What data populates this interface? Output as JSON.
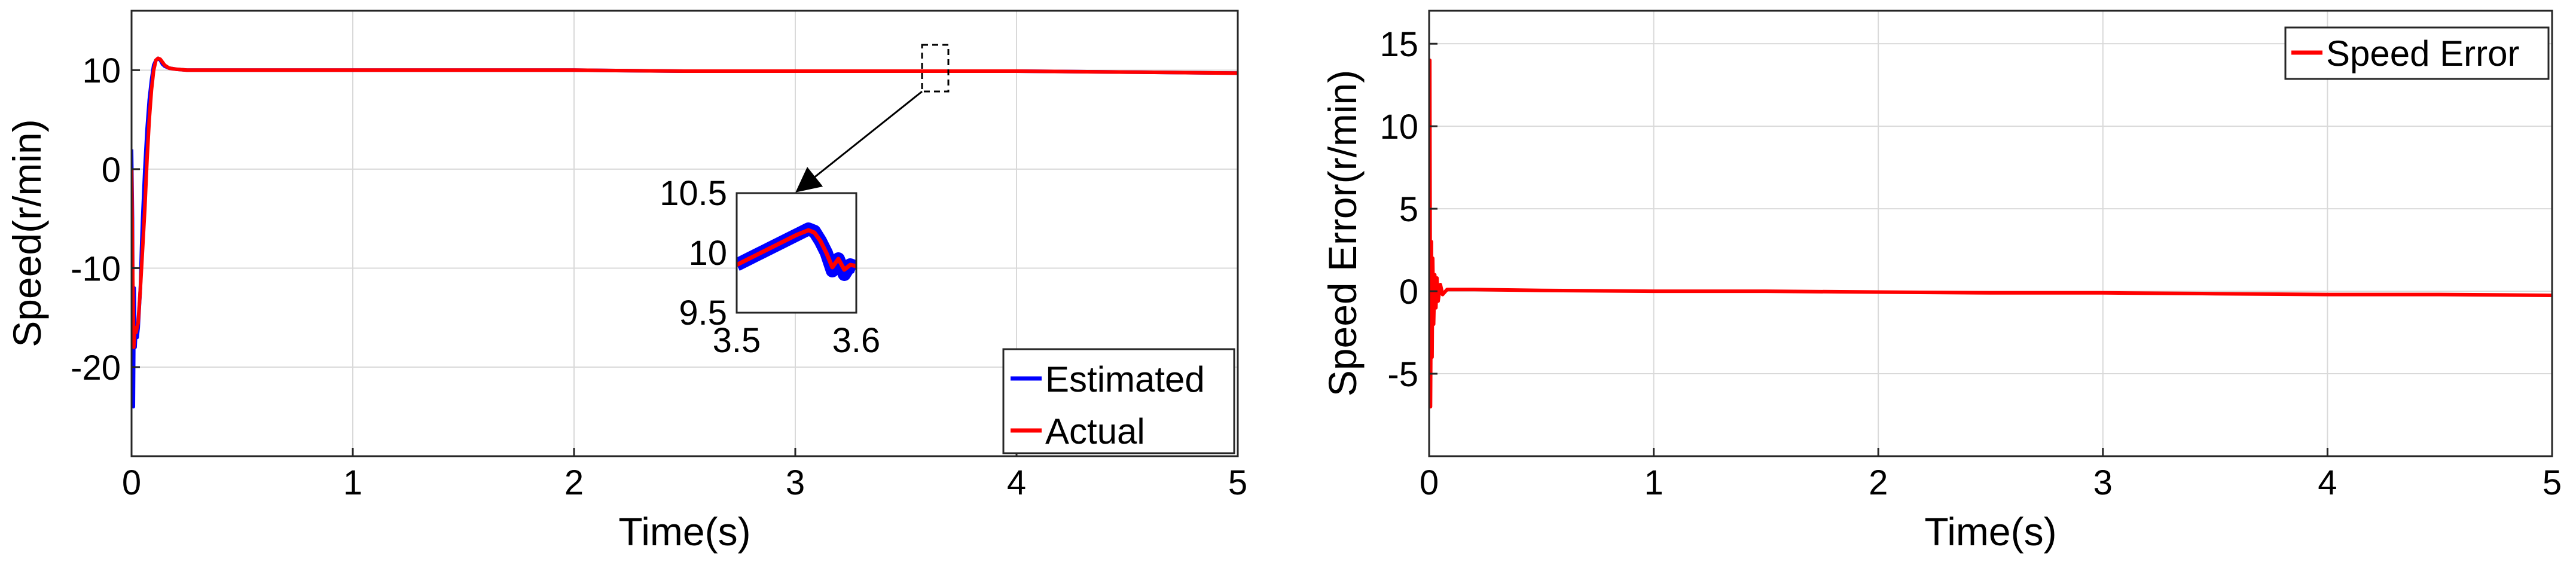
{
  "colors": {
    "estimated": "#0000ff",
    "actual": "#ff0000",
    "error": "#ff0000",
    "grid": "#d9d9d9",
    "axis": "#262626"
  },
  "chart_data": [
    {
      "type": "line",
      "xlabel": "Time(s)",
      "ylabel": "Speed(r/min)",
      "xlim": [
        0,
        5
      ],
      "ylim": [
        -29,
        16
      ],
      "xticks": [
        "0",
        "1",
        "2",
        "3",
        "4",
        "5"
      ],
      "yticks": [
        "-20",
        "-10",
        "0",
        "10"
      ],
      "grid": true,
      "legend_position": "bottom-right",
      "series": [
        {
          "name": "Estimated",
          "color": "#0000ff",
          "x": [
            0.0,
            0.004,
            0.008,
            0.012,
            0.016,
            0.02,
            0.025,
            0.03,
            0.035,
            0.04,
            0.045,
            0.05,
            0.06,
            0.07,
            0.08,
            0.09,
            0.1,
            0.11,
            0.12,
            0.13,
            0.14,
            0.15,
            0.17,
            0.2,
            0.25,
            0.3,
            0.5,
            1.0,
            1.5,
            2.0,
            2.5,
            3.0,
            3.5,
            4.0,
            4.5,
            5.0
          ],
          "y": [
            2,
            -5,
            -24,
            -12,
            -18,
            -16,
            -17,
            -16,
            -14,
            -12,
            -8,
            -5,
            0,
            4,
            7,
            9,
            10.5,
            11,
            11.2,
            11,
            10.6,
            10.4,
            10.2,
            10.1,
            10.0,
            10.0,
            10.0,
            10.0,
            10.0,
            10.0,
            9.9,
            9.9,
            9.9,
            9.9,
            9.8,
            9.7
          ]
        },
        {
          "name": "Actual",
          "color": "#ff0000",
          "x": [
            0.0,
            0.005,
            0.01,
            0.015,
            0.02,
            0.03,
            0.04,
            0.05,
            0.06,
            0.07,
            0.08,
            0.09,
            0.1,
            0.11,
            0.12,
            0.13,
            0.14,
            0.15,
            0.17,
            0.2,
            0.25,
            0.3,
            0.5,
            1.0,
            1.5,
            2.0,
            2.5,
            3.0,
            3.5,
            4.0,
            4.5,
            5.0
          ],
          "y": [
            0,
            -10,
            -18,
            -16,
            -16.5,
            -15.5,
            -12,
            -8,
            -4,
            1,
            5,
            8,
            10,
            11,
            11.2,
            11.1,
            10.8,
            10.5,
            10.2,
            10.1,
            10.0,
            10.0,
            10.0,
            10.0,
            10.0,
            10.0,
            9.9,
            9.9,
            9.9,
            9.9,
            9.8,
            9.7
          ]
        }
      ],
      "inset": {
        "xlim": [
          3.5,
          3.6
        ],
        "ylim": [
          9.5,
          10.5
        ],
        "xticks": [
          "3.5",
          "3.6"
        ],
        "yticks": [
          "9.5",
          "10",
          "10.5"
        ],
        "series": [
          {
            "name": "Estimated",
            "x": [
              3.5,
              3.51,
              3.52,
              3.53,
              3.54,
              3.55,
              3.56,
              3.565,
              3.57,
              3.575,
              3.58,
              3.585,
              3.59,
              3.595,
              3.6
            ],
            "y": [
              9.9,
              9.95,
              10.0,
              10.05,
              10.1,
              10.15,
              10.2,
              10.18,
              10.1,
              10.0,
              9.85,
              9.95,
              9.82,
              9.9,
              9.88
            ]
          },
          {
            "name": "Actual",
            "x": [
              3.5,
              3.51,
              3.52,
              3.53,
              3.54,
              3.55,
              3.56,
              3.565,
              3.57,
              3.575,
              3.58,
              3.585,
              3.59,
              3.595,
              3.6
            ],
            "y": [
              9.9,
              9.95,
              10.0,
              10.05,
              10.1,
              10.15,
              10.19,
              10.17,
              10.1,
              10.0,
              9.88,
              9.95,
              9.86,
              9.9,
              9.89
            ]
          }
        ]
      }
    },
    {
      "type": "line",
      "xlabel": "Time(s)",
      "ylabel": "Speed Error(r/min)",
      "xlim": [
        0,
        5
      ],
      "ylim": [
        -10,
        17
      ],
      "xticks": [
        "0",
        "1",
        "2",
        "3",
        "4",
        "5"
      ],
      "yticks": [
        "-5",
        "0",
        "5",
        "10",
        "15"
      ],
      "grid": true,
      "legend_position": "top-right",
      "series": [
        {
          "name": "Speed Error",
          "color": "#ff0000",
          "x": [
            0.0,
            0.003,
            0.006,
            0.01,
            0.013,
            0.016,
            0.02,
            0.025,
            0.03,
            0.035,
            0.04,
            0.05,
            0.06,
            0.08,
            0.1,
            0.15,
            0.2,
            0.5,
            1.0,
            1.5,
            2.0,
            2.5,
            3.0,
            3.5,
            4.0,
            4.5,
            5.0
          ],
          "y": [
            0,
            14,
            -7,
            3,
            -4,
            2,
            -2,
            1,
            -1,
            0.8,
            -0.6,
            0.4,
            -0.2,
            0.1,
            0.1,
            0.1,
            0.1,
            0.05,
            0.0,
            0.0,
            -0.05,
            -0.1,
            -0.1,
            -0.15,
            -0.2,
            -0.2,
            -0.25
          ]
        }
      ]
    }
  ]
}
